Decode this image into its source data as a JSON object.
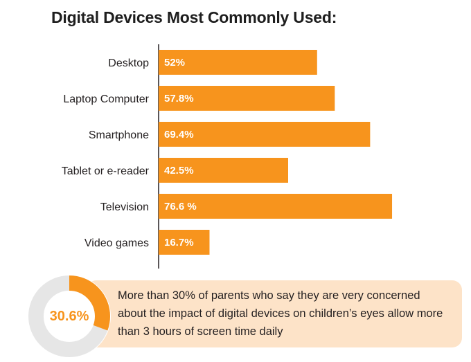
{
  "chart_data": {
    "type": "bar",
    "orientation": "horizontal",
    "title": "Digital Devices Most Commonly Used:",
    "categories": [
      "Desktop",
      "Laptop Computer",
      "Smartphone",
      "Tablet or e-reader",
      "Television",
      "Video games"
    ],
    "values": [
      52,
      57.8,
      69.4,
      42.5,
      76.6,
      16.7
    ],
    "value_labels": [
      "52%",
      "57.8%",
      "69.4%",
      "42.5%",
      "76.6 %",
      "16.7%"
    ],
    "xlabel": "",
    "ylabel": "",
    "xlim": [
      0,
      100
    ],
    "grid": false,
    "legend": "none"
  },
  "callout": {
    "percent_label": "30.6%",
    "percent_value": 30.6,
    "text": "More than 30% of parents who say they are very concerned about the impact of digital devices on children’s eyes allow more than 3 hours of screen time daily"
  },
  "colors": {
    "bar": "#f7941d",
    "callout_bg": "#fde3c8",
    "donut_track": "#e6e6e6",
    "donut_fill": "#f7941d",
    "axis": "#231f20",
    "accent_text": "#f7941d"
  }
}
